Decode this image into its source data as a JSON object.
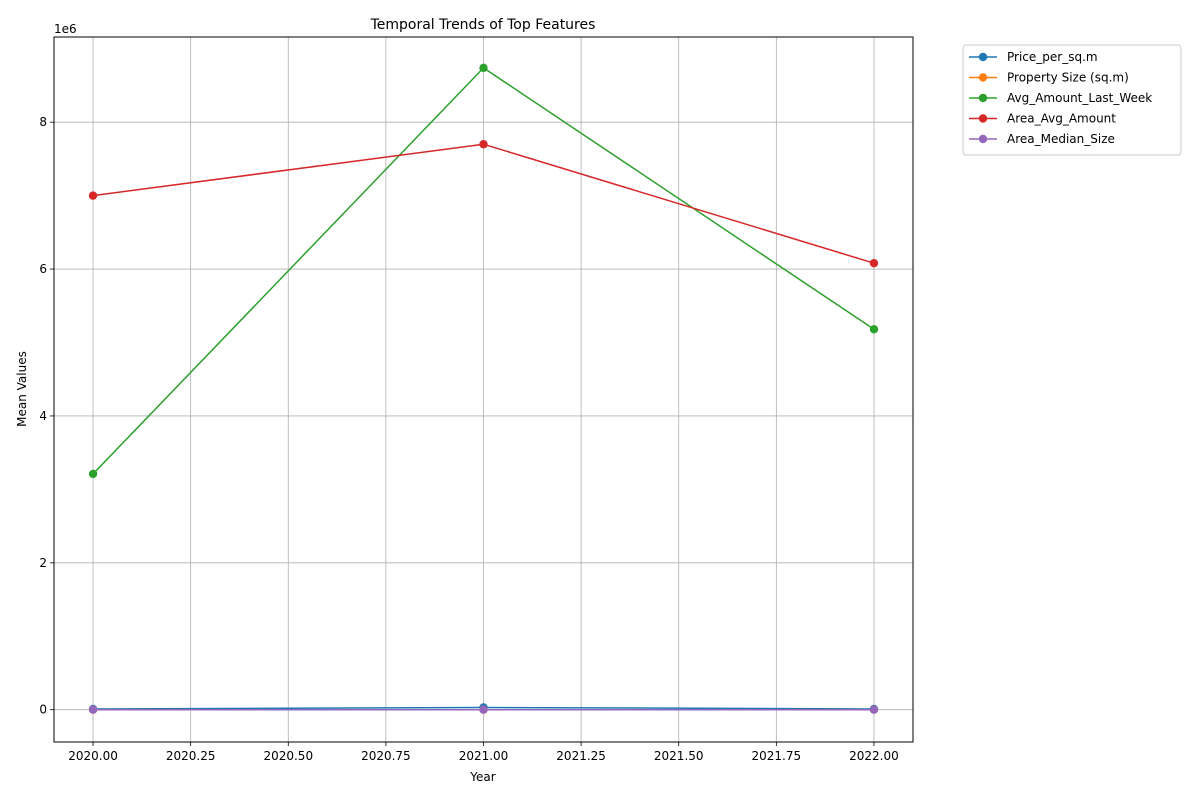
{
  "chart_data": {
    "type": "line",
    "title": "Temporal Trends of Top Features",
    "xlabel": "Year",
    "ylabel": "Mean Values",
    "y_offset_text": "1e6",
    "x": [
      2020,
      2021,
      2022
    ],
    "xlim": [
      2019.9,
      2022.1
    ],
    "ylim": [
      -0.44,
      9.16
    ],
    "y_units": "1e6",
    "x_ticks": [
      2020.0,
      2020.25,
      2020.5,
      2020.75,
      2021.0,
      2021.25,
      2021.5,
      2021.75,
      2022.0
    ],
    "x_tick_labels": [
      "2020.00",
      "2020.25",
      "2020.50",
      "2020.75",
      "2021.00",
      "2021.25",
      "2021.50",
      "2021.75",
      "2022.00"
    ],
    "y_ticks": [
      0,
      2,
      4,
      6,
      8
    ],
    "y_tick_labels": [
      "0",
      "2",
      "4",
      "6",
      "8"
    ],
    "grid": true,
    "legend_position": "outside upper right",
    "markers": "circle",
    "series": [
      {
        "name": "Price_per_sq.m",
        "color": "#1f77b4",
        "values": [
          0.01,
          0.03,
          0.01
        ]
      },
      {
        "name": "Property Size (sq.m)",
        "color": "#ff7f0e",
        "values": [
          0.0,
          0.0,
          0.0
        ]
      },
      {
        "name": "Avg_Amount_Last_Week",
        "color": "#2ca02c",
        "values": [
          3.21,
          8.74,
          5.18
        ]
      },
      {
        "name": "Area_Avg_Amount",
        "color": "#d62728",
        "values": [
          7.0,
          7.7,
          6.08
        ]
      },
      {
        "name": "Area_Median_Size",
        "color": "#9467bd",
        "values": [
          0.0,
          0.0,
          0.0
        ]
      }
    ]
  }
}
